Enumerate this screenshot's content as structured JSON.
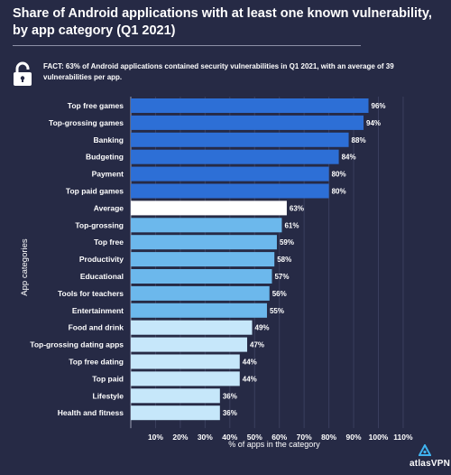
{
  "title": "Share of Android applications with at least one known vulnerability, by app category  (Q1 2021)",
  "fact": "FACT: 63% of Android applications contained security vulnerabilities in Q1 2021, with an average of 39 vulnerabilities per app.",
  "logo_text": "atlasVPN",
  "colors": {
    "background": "#262a45",
    "dark_blue": "#2d6fd6",
    "mid_blue": "#6cb8ec",
    "light_blue": "#c6e7fa",
    "average": "#ffffff"
  },
  "chart_data": {
    "type": "bar",
    "orientation": "horizontal",
    "ylabel": "App categories",
    "xlabel": "% of apps in the category",
    "xlim": [
      0,
      110
    ],
    "xticks": [
      "10%",
      "20%",
      "30%",
      "40%",
      "50%",
      "60%",
      "70%",
      "80%",
      "90%",
      "100%",
      "110%"
    ],
    "grid": true,
    "categories": [
      "Top free games",
      "Top-grossing games",
      "Banking",
      "Budgeting",
      "Payment",
      "Top paid games",
      "Average",
      "Top-grossing",
      "Top free",
      "Productivity",
      "Educational",
      "Tools for teachers",
      "Entertainment",
      "Food and drink",
      "Top-grossing dating apps",
      "Top free dating",
      "Top paid",
      "Lifestyle",
      "Health and fitness"
    ],
    "values": [
      96,
      94,
      88,
      84,
      80,
      80,
      63,
      61,
      59,
      58,
      57,
      56,
      55,
      49,
      47,
      44,
      44,
      36,
      36
    ],
    "value_labels": [
      "96%",
      "94%",
      "88%",
      "84%",
      "80%",
      "80%",
      "63%",
      "61%",
      "59%",
      "58%",
      "57%",
      "56%",
      "55%",
      "49%",
      "47%",
      "44%",
      "44%",
      "36%",
      "36%"
    ],
    "bar_colors": [
      "#2d6fd6",
      "#2d6fd6",
      "#2d6fd6",
      "#2d6fd6",
      "#2d6fd6",
      "#2d6fd6",
      "#ffffff",
      "#6cb8ec",
      "#6cb8ec",
      "#6cb8ec",
      "#6cb8ec",
      "#6cb8ec",
      "#6cb8ec",
      "#c6e7fa",
      "#c6e7fa",
      "#c6e7fa",
      "#c6e7fa",
      "#c6e7fa",
      "#c6e7fa"
    ]
  }
}
